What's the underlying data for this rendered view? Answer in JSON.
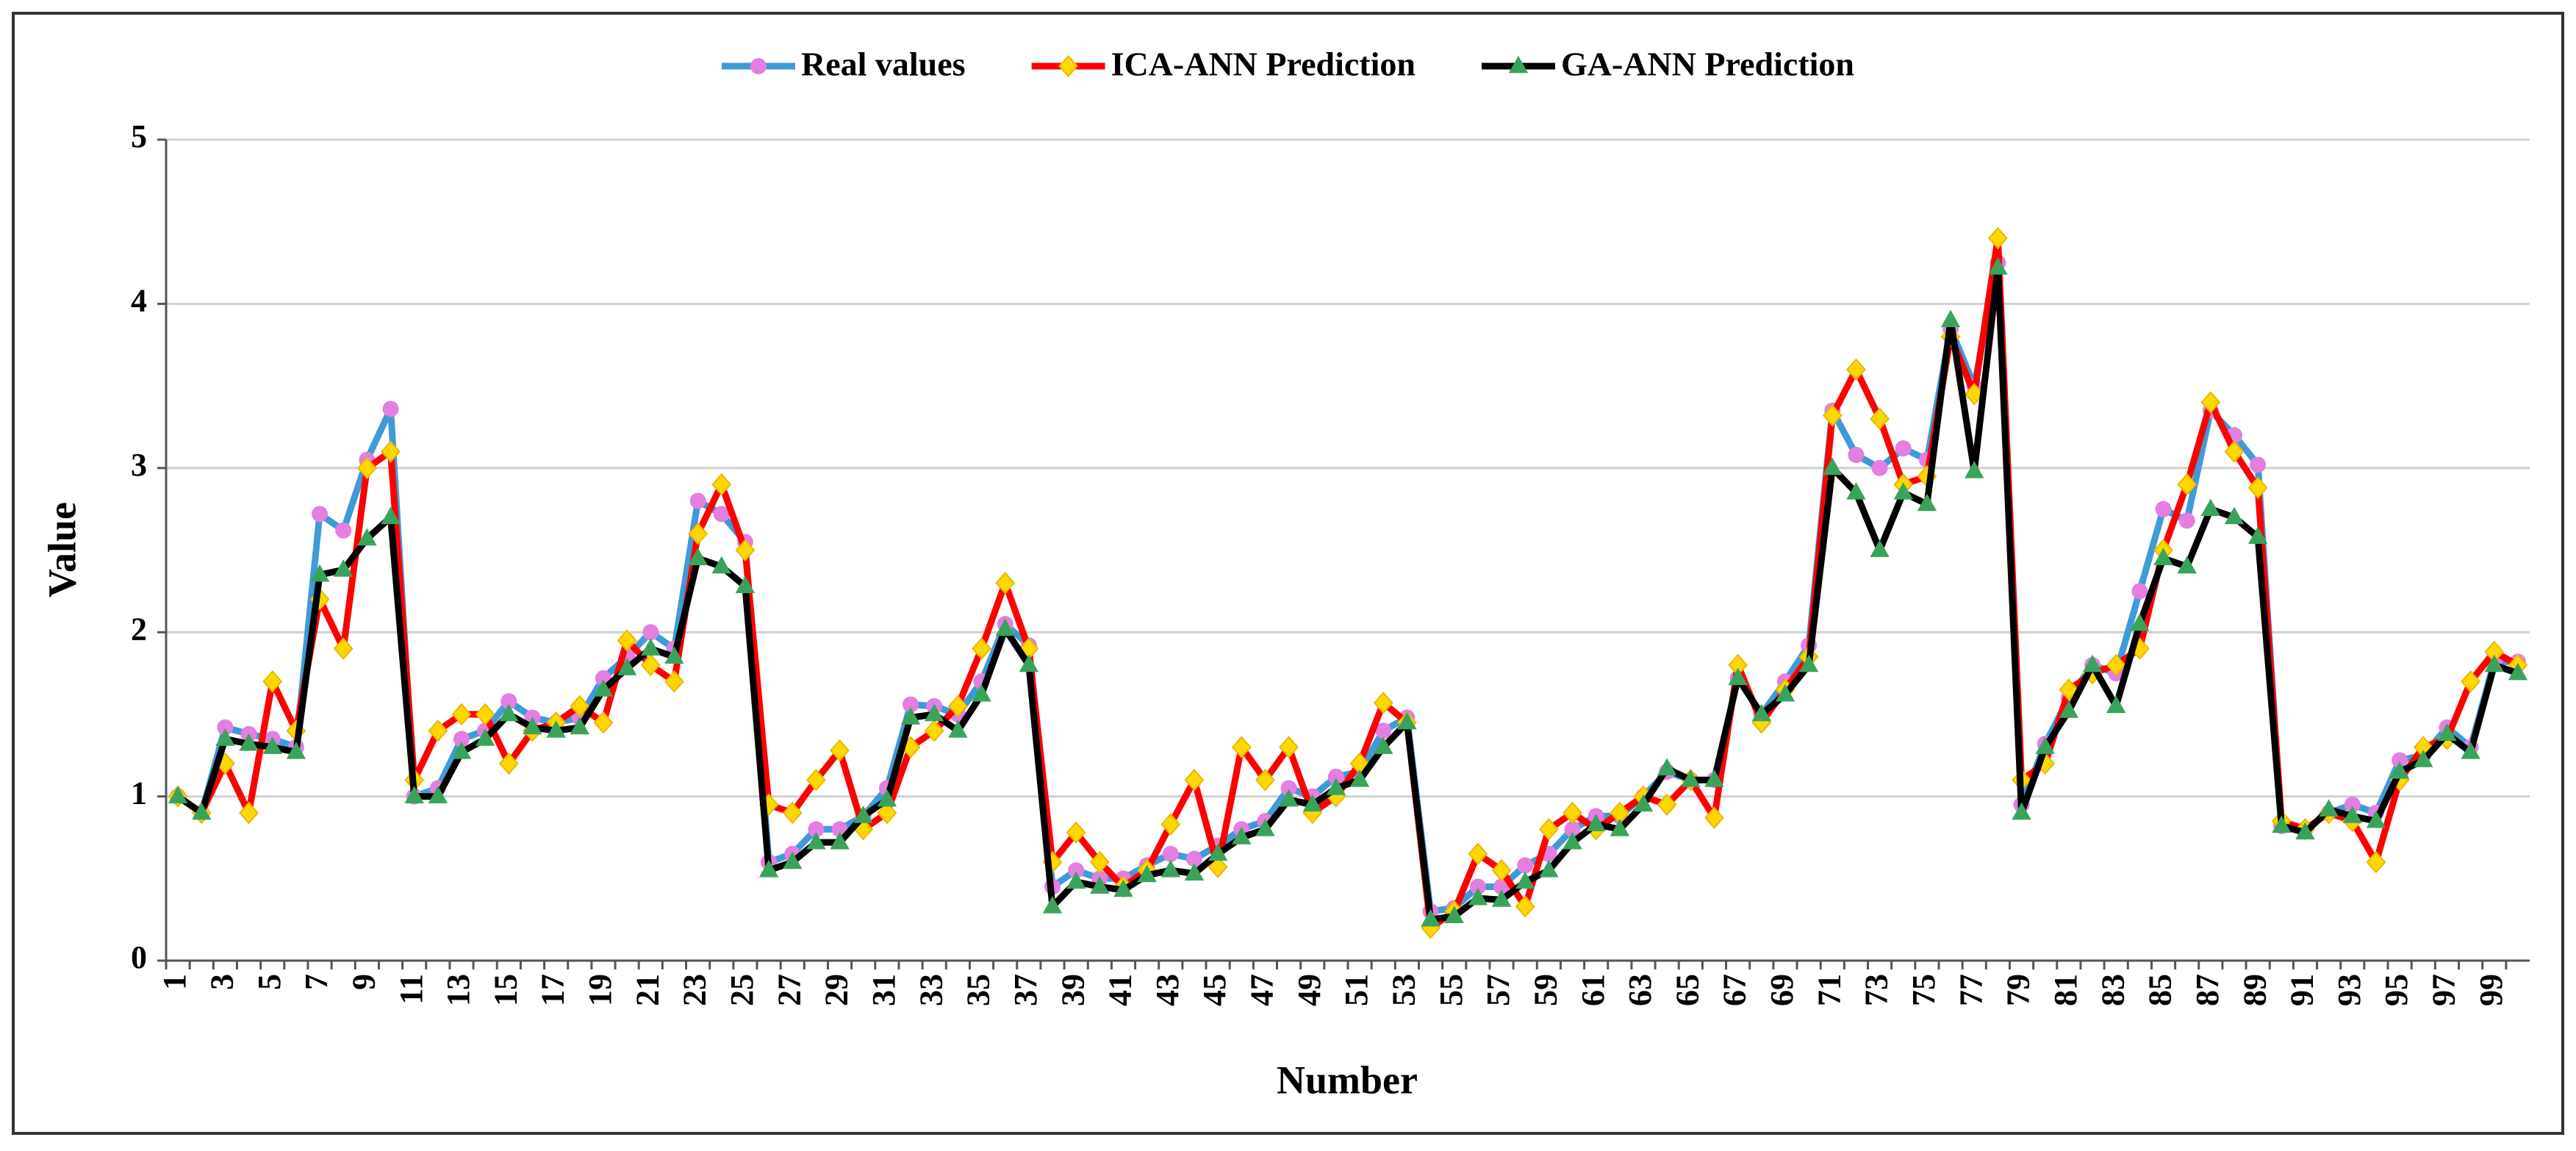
{
  "chart_data": {
    "type": "line",
    "x_label": "Number",
    "y_label": "Value",
    "categories": [
      "1",
      null,
      "3",
      null,
      "5",
      null,
      "7",
      null,
      "9",
      null,
      "11",
      null,
      "13",
      null,
      "15",
      null,
      "17",
      null,
      "19",
      null,
      "21",
      null,
      "23",
      null,
      "25",
      null,
      "27",
      null,
      "29",
      null,
      "31",
      null,
      "33",
      null,
      "35",
      null,
      "37",
      null,
      "39",
      null,
      "41",
      null,
      "43",
      null,
      "45",
      null,
      "47",
      null,
      "49",
      null,
      "51",
      null,
      "53",
      null,
      "55",
      null,
      "57",
      null,
      "59",
      null,
      "61",
      null,
      "63",
      null,
      "65",
      null,
      "67",
      null,
      "69",
      null,
      "71",
      null,
      "73",
      null,
      "75",
      null,
      "77",
      null,
      "79",
      null,
      "81",
      null,
      "83",
      null,
      "85",
      null,
      "87",
      null,
      "89",
      null,
      "91",
      null,
      "93",
      null,
      "95",
      null,
      "97",
      null,
      "99",
      null
    ],
    "ylim": [
      0,
      5
    ],
    "yticks": [
      0,
      1,
      2,
      3,
      4,
      5
    ],
    "grid": true,
    "legend": "top",
    "series": [
      {
        "name": "Real values",
        "color": "#3f9ad8",
        "marker": "circle",
        "marker_color": "#e27fe0",
        "values": [
          1.0,
          0.9,
          1.42,
          1.38,
          1.35,
          1.3,
          2.72,
          2.62,
          3.05,
          3.36,
          1.0,
          1.05,
          1.35,
          1.4,
          1.58,
          1.48,
          1.45,
          1.48,
          1.72,
          1.85,
          2.0,
          1.9,
          2.8,
          2.72,
          2.55,
          0.6,
          0.65,
          0.8,
          0.8,
          0.88,
          1.05,
          1.56,
          1.55,
          1.5,
          1.7,
          2.05,
          1.92,
          0.45,
          0.55,
          0.5,
          0.5,
          0.58,
          0.65,
          0.62,
          0.7,
          0.8,
          0.85,
          1.05,
          1.0,
          1.12,
          1.15,
          1.4,
          1.48,
          0.3,
          0.32,
          0.45,
          0.45,
          0.58,
          0.65,
          0.8,
          0.88,
          0.88,
          1.0,
          1.15,
          1.1,
          1.1,
          1.72,
          1.5,
          1.7,
          1.92,
          3.35,
          3.08,
          3.0,
          3.12,
          3.05,
          3.85,
          3.5,
          4.25,
          0.95,
          1.32,
          1.6,
          1.8,
          1.75,
          2.25,
          2.75,
          2.68,
          3.35,
          3.2,
          3.02,
          0.82,
          0.8,
          0.9,
          0.95,
          0.9,
          1.22,
          1.25,
          1.42,
          1.3,
          1.82,
          1.82
        ]
      },
      {
        "name": "ICA-ANN Prediction",
        "color": "#ff0000",
        "marker": "diamond",
        "marker_color": "#ffd700",
        "values": [
          1.0,
          0.9,
          1.2,
          0.9,
          1.7,
          1.4,
          2.2,
          1.9,
          3.0,
          3.1,
          1.1,
          1.4,
          1.5,
          1.5,
          1.2,
          1.4,
          1.45,
          1.55,
          1.45,
          1.95,
          1.8,
          1.7,
          2.6,
          2.9,
          2.5,
          0.95,
          0.9,
          1.1,
          1.28,
          0.8,
          0.9,
          1.3,
          1.4,
          1.55,
          1.9,
          2.3,
          1.9,
          0.6,
          0.78,
          0.6,
          0.45,
          0.55,
          0.83,
          1.1,
          0.57,
          1.3,
          1.1,
          1.3,
          0.9,
          1.0,
          1.2,
          1.57,
          1.45,
          0.2,
          0.3,
          0.65,
          0.55,
          0.33,
          0.8,
          0.9,
          0.8,
          0.9,
          1.0,
          0.95,
          1.1,
          0.87,
          1.8,
          1.45,
          1.65,
          1.85,
          3.32,
          3.6,
          3.3,
          2.9,
          2.95,
          3.8,
          3.45,
          4.4,
          1.1,
          1.2,
          1.65,
          1.75,
          1.8,
          1.9,
          2.5,
          2.9,
          3.4,
          3.1,
          2.88,
          0.85,
          0.8,
          0.9,
          0.85,
          0.6,
          1.1,
          1.3,
          1.35,
          1.7,
          1.88,
          1.8
        ]
      },
      {
        "name": "GA-ANN Prediction",
        "color": "#000000",
        "marker": "triangle",
        "marker_color": "#3aa35b",
        "values": [
          1.0,
          0.9,
          1.35,
          1.32,
          1.3,
          1.27,
          2.35,
          2.38,
          2.57,
          2.7,
          1.0,
          1.0,
          1.27,
          1.35,
          1.5,
          1.42,
          1.4,
          1.42,
          1.65,
          1.78,
          1.9,
          1.85,
          2.45,
          2.4,
          2.28,
          0.55,
          0.6,
          0.72,
          0.72,
          0.88,
          0.98,
          1.48,
          1.5,
          1.4,
          1.62,
          2.02,
          1.8,
          0.33,
          0.48,
          0.45,
          0.43,
          0.52,
          0.55,
          0.53,
          0.65,
          0.75,
          0.8,
          0.98,
          0.95,
          1.05,
          1.1,
          1.3,
          1.45,
          0.25,
          0.27,
          0.38,
          0.37,
          0.48,
          0.55,
          0.72,
          0.83,
          0.8,
          0.95,
          1.17,
          1.1,
          1.1,
          1.72,
          1.5,
          1.62,
          1.8,
          3.0,
          2.85,
          2.5,
          2.85,
          2.78,
          3.9,
          2.98,
          4.22,
          0.9,
          1.3,
          1.52,
          1.8,
          1.55,
          2.05,
          2.45,
          2.4,
          2.75,
          2.7,
          2.58,
          0.82,
          0.78,
          0.92,
          0.88,
          0.85,
          1.15,
          1.22,
          1.38,
          1.27,
          1.8,
          1.75
        ]
      }
    ]
  }
}
